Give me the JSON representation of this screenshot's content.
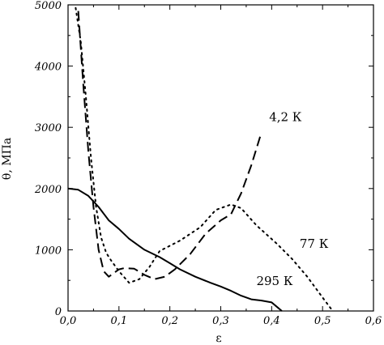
{
  "chart_data": {
    "type": "line",
    "title": "",
    "xlabel": "ε",
    "ylabel": "θ, МПа",
    "xlim": [
      0,
      0.6
    ],
    "ylim": [
      0,
      5000
    ],
    "x_ticks": [
      "0,0",
      "0,1",
      "0,2",
      "0,3",
      "0,4",
      "0,5",
      "0,6"
    ],
    "x_tick_values": [
      0,
      0.1,
      0.2,
      0.3,
      0.4,
      0.5,
      0.6
    ],
    "y_ticks": [
      "0",
      "1000",
      "2000",
      "3000",
      "4000",
      "5000"
    ],
    "y_tick_values": [
      0,
      1000,
      2000,
      3000,
      4000,
      5000
    ],
    "grid": false,
    "legend": "none",
    "series": [
      {
        "name": "295 К",
        "style": "solid",
        "x": [
          0.0,
          0.02,
          0.04,
          0.06,
          0.08,
          0.1,
          0.12,
          0.15,
          0.18,
          0.2,
          0.22,
          0.25,
          0.28,
          0.3,
          0.32,
          0.34,
          0.36,
          0.38,
          0.4,
          0.41,
          0.42
        ],
        "y": [
          2000,
          1980,
          1880,
          1700,
          1480,
          1340,
          1180,
          1000,
          880,
          780,
          680,
          560,
          460,
          400,
          330,
          250,
          190,
          170,
          140,
          70,
          0
        ]
      },
      {
        "name": "4,2 К",
        "style": "dashed",
        "x": [
          0.02,
          0.03,
          0.04,
          0.05,
          0.06,
          0.07,
          0.08,
          0.09,
          0.1,
          0.11,
          0.13,
          0.15,
          0.17,
          0.19,
          0.21,
          0.24,
          0.27,
          0.3,
          0.32,
          0.34,
          0.36,
          0.38
        ],
        "y": [
          4900,
          3700,
          2600,
          1700,
          1000,
          650,
          560,
          620,
          680,
          700,
          690,
          590,
          520,
          560,
          680,
          930,
          1260,
          1480,
          1580,
          1920,
          2380,
          2920
        ]
      },
      {
        "name": "77 К",
        "style": "dotted",
        "x": [
          0.015,
          0.025,
          0.035,
          0.045,
          0.055,
          0.065,
          0.075,
          0.085,
          0.1,
          0.12,
          0.14,
          0.16,
          0.18,
          0.22,
          0.26,
          0.29,
          0.32,
          0.34,
          0.37,
          0.41,
          0.44,
          0.47,
          0.5,
          0.52
        ],
        "y": [
          4950,
          4400,
          3500,
          2500,
          1700,
          1200,
          950,
          820,
          650,
          460,
          520,
          720,
          980,
          1150,
          1370,
          1650,
          1740,
          1680,
          1400,
          1100,
          850,
          560,
          220,
          0
        ]
      }
    ],
    "annotations": [
      {
        "text": "4,2 К",
        "x": 0.395,
        "y": 3100
      },
      {
        "text": "77 К",
        "x": 0.455,
        "y": 1030
      },
      {
        "text": "295 К",
        "x": 0.37,
        "y": 420
      }
    ]
  }
}
